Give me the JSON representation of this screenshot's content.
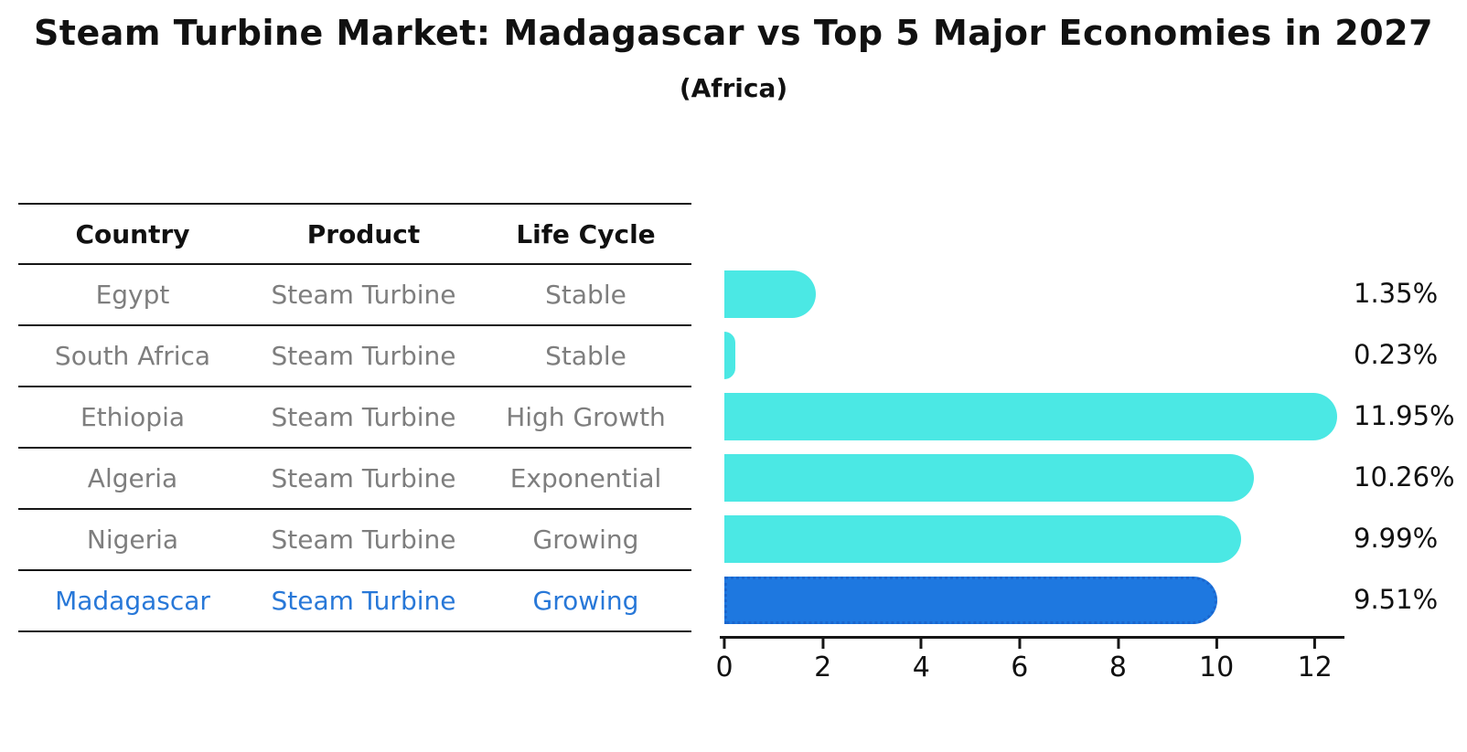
{
  "title": "Steam Turbine Market: Madagascar vs Top 5 Major Economies in 2027",
  "subtitle": "(Africa)",
  "table": {
    "headers": [
      "Country",
      "Product",
      "Life Cycle"
    ],
    "rows": [
      {
        "country": "Egypt",
        "product": "Steam Turbine",
        "life_cycle": "Stable"
      },
      {
        "country": "South Africa",
        "product": "Steam Turbine",
        "life_cycle": "Stable"
      },
      {
        "country": "Ethiopia",
        "product": "Steam Turbine",
        "life_cycle": "High Growth"
      },
      {
        "country": "Algeria",
        "product": "Steam Turbine",
        "life_cycle": "Exponential"
      },
      {
        "country": "Nigeria",
        "product": "Steam Turbine",
        "life_cycle": "Growing"
      },
      {
        "country": "Madagascar",
        "product": "Steam Turbine",
        "life_cycle": "Growing"
      }
    ]
  },
  "chart_data": {
    "type": "bar",
    "orientation": "horizontal",
    "title": "Steam Turbine Market: Madagascar vs Top 5 Major Economies in 2027",
    "subtitle": "(Africa)",
    "categories": [
      "Egypt",
      "South Africa",
      "Ethiopia",
      "Algeria",
      "Nigeria",
      "Madagascar"
    ],
    "values": [
      1.35,
      0.23,
      11.95,
      10.26,
      9.99,
      9.51
    ],
    "value_labels": [
      "1.35%",
      "0.23%",
      "11.95%",
      "10.26%",
      "9.99%",
      "9.51%"
    ],
    "xlabel": "",
    "ylabel": "",
    "xticks": [
      0,
      2,
      4,
      6,
      8,
      10,
      12
    ],
    "xlim": [
      0,
      12.6
    ],
    "grid": false,
    "legend": false,
    "highlight_index": 5,
    "series_color": "#4BE8E4",
    "highlight_color": "#1E78E0",
    "highlight_border_color": "#1A66CE"
  },
  "colors": {
    "text_primary": "#111111",
    "text_muted": "#7E7E7E",
    "highlight_text": "#2878D8",
    "line": "#161616"
  }
}
